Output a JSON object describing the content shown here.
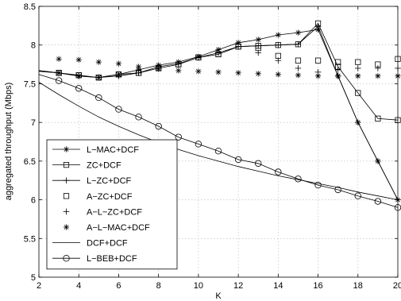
{
  "chart_data": {
    "type": "line",
    "title": "",
    "xlabel": "K",
    "ylabel": "aggregated throughput (Mbps)",
    "xlim": [
      2,
      20
    ],
    "ylim": [
      5,
      8.5
    ],
    "xticks": [
      "2",
      "4",
      "6",
      "8",
      "10",
      "12",
      "14",
      "16",
      "18",
      "20"
    ],
    "yticks": [
      "5",
      "5.5",
      "6",
      "6.5",
      "7",
      "7.5",
      "8",
      "8.5"
    ],
    "grid": true,
    "legend_position": "lower-left",
    "x": [
      2,
      3,
      4,
      5,
      6,
      7,
      8,
      9,
      10,
      11,
      12,
      13,
      14,
      15,
      16,
      17,
      18,
      19,
      20
    ],
    "series": [
      {
        "name": "L−MAC+DCF",
        "line": "solid",
        "marker": "asterisk",
        "values": [
          7.67,
          7.64,
          7.6,
          7.58,
          7.62,
          7.68,
          7.74,
          7.78,
          7.85,
          7.94,
          8.03,
          8.07,
          8.13,
          8.16,
          8.2,
          7.6,
          7.0,
          6.5,
          6.0
        ]
      },
      {
        "name": "ZC+DCF",
        "line": "solid",
        "marker": "square",
        "values": [
          7.67,
          7.64,
          7.61,
          7.58,
          7.62,
          7.64,
          7.7,
          7.75,
          7.84,
          7.88,
          7.98,
          7.99,
          8.0,
          8.01,
          8.28,
          7.72,
          7.38,
          7.05,
          7.03
        ]
      },
      {
        "name": "L−ZC+DCF",
        "line": "solid",
        "marker": "plus",
        "values": [
          7.66,
          7.64,
          7.6,
          7.58,
          7.6,
          7.64,
          7.72,
          7.76,
          7.84,
          7.9,
          7.98,
          7.99,
          8.0,
          8.01,
          8.24,
          7.6,
          7.0,
          6.5,
          6.0
        ]
      },
      {
        "name": "A−ZC+DCF",
        "line": "none",
        "marker": "square",
        "values": [
          7.67,
          7.64,
          7.61,
          7.58,
          7.62,
          7.64,
          7.7,
          7.75,
          7.84,
          7.88,
          7.98,
          7.96,
          7.86,
          7.8,
          7.8,
          7.78,
          7.78,
          7.75,
          7.82
        ]
      },
      {
        "name": "A−L−ZC+DCF",
        "line": "none",
        "marker": "plus",
        "values": [
          7.66,
          7.64,
          7.6,
          7.58,
          7.6,
          7.64,
          7.72,
          7.76,
          7.84,
          7.9,
          7.98,
          7.9,
          7.8,
          7.7,
          7.65,
          7.68,
          7.7,
          7.7,
          7.7
        ]
      },
      {
        "name": "A−L−MAC+DCF",
        "line": "none",
        "marker": "asterisk",
        "values": [
          7.68,
          7.82,
          7.81,
          7.78,
          7.76,
          7.72,
          7.69,
          7.67,
          7.66,
          7.65,
          7.64,
          7.63,
          7.62,
          7.61,
          7.6,
          7.6,
          7.6,
          7.6,
          7.6
        ]
      },
      {
        "name": "DCF+DCF",
        "line": "solid",
        "marker": "none",
        "values": [
          7.52,
          7.36,
          7.21,
          7.07,
          6.95,
          6.84,
          6.74,
          6.65,
          6.57,
          6.5,
          6.43,
          6.37,
          6.31,
          6.26,
          6.21,
          6.16,
          6.1,
          6.05,
          6.0
        ]
      },
      {
        "name": "L−BEB+DCF",
        "line": "solid",
        "marker": "circle",
        "values": [
          7.62,
          7.54,
          7.44,
          7.32,
          7.17,
          7.07,
          6.95,
          6.81,
          6.72,
          6.63,
          6.52,
          6.47,
          6.36,
          6.27,
          6.19,
          6.13,
          6.05,
          5.98,
          5.9
        ]
      }
    ]
  }
}
